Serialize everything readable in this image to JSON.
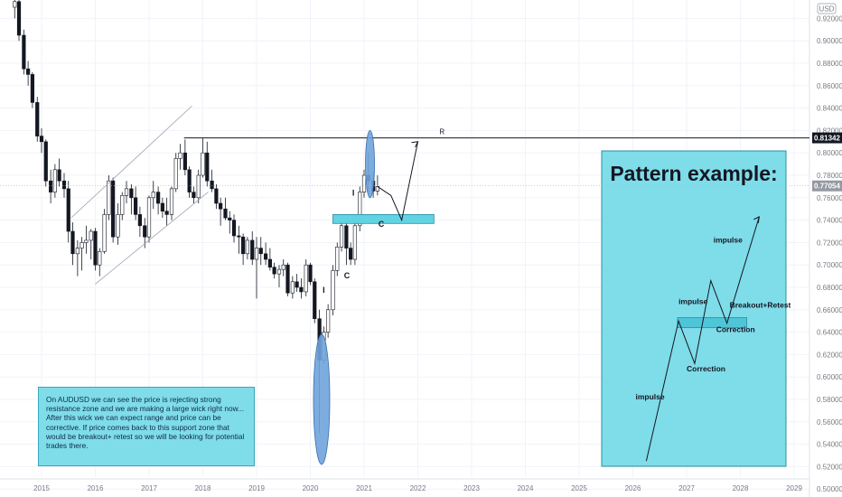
{
  "chart_data": {
    "type": "candlestick",
    "symbol_currency": "USD",
    "x_ticks": [
      "2015",
      "2016",
      "2017",
      "2018",
      "2019",
      "2020",
      "2021",
      "2022",
      "2023",
      "2024",
      "2025",
      "2026",
      "2027",
      "2028",
      "2029"
    ],
    "y_ticks": [
      "0.50000",
      "0.52000",
      "0.54000",
      "0.56000",
      "0.58000",
      "0.60000",
      "0.62000",
      "0.64000",
      "0.66000",
      "0.68000",
      "0.70000",
      "0.72000",
      "0.74000",
      "0.76000",
      "0.78000",
      "0.80000",
      "0.82000",
      "0.84000",
      "0.86000",
      "0.88000",
      "0.90000",
      "0.92000"
    ],
    "ylim": [
      0.495,
      0.93
    ],
    "price_labels": [
      {
        "value": 0.81342,
        "text": "0.81342"
      },
      {
        "value": 0.77054,
        "text": "0.77054"
      }
    ],
    "resistance": {
      "value": 0.8134,
      "label": "R"
    },
    "candles": [
      [
        2014.5,
        0.93,
        0.94,
        0.92,
        0.935
      ],
      [
        2014.58,
        0.935,
        0.938,
        0.9,
        0.905
      ],
      [
        2014.67,
        0.905,
        0.91,
        0.87,
        0.875
      ],
      [
        2014.75,
        0.875,
        0.882,
        0.86,
        0.87
      ],
      [
        2014.83,
        0.87,
        0.872,
        0.84,
        0.845
      ],
      [
        2014.92,
        0.845,
        0.85,
        0.81,
        0.815
      ],
      [
        2015.0,
        0.815,
        0.822,
        0.8,
        0.81
      ],
      [
        2015.08,
        0.81,
        0.812,
        0.77,
        0.775
      ],
      [
        2015.17,
        0.775,
        0.785,
        0.755,
        0.765
      ],
      [
        2015.25,
        0.765,
        0.79,
        0.76,
        0.785
      ],
      [
        2015.33,
        0.785,
        0.795,
        0.77,
        0.775
      ],
      [
        2015.42,
        0.775,
        0.782,
        0.76,
        0.768
      ],
      [
        2015.5,
        0.768,
        0.775,
        0.72,
        0.73
      ],
      [
        2015.58,
        0.73,
        0.738,
        0.7,
        0.71
      ],
      [
        2015.67,
        0.71,
        0.722,
        0.69,
        0.715
      ],
      [
        2015.75,
        0.715,
        0.725,
        0.695,
        0.72
      ],
      [
        2015.83,
        0.72,
        0.735,
        0.71,
        0.722
      ],
      [
        2015.92,
        0.722,
        0.732,
        0.705,
        0.73
      ],
      [
        2016.0,
        0.73,
        0.733,
        0.695,
        0.7
      ],
      [
        2016.08,
        0.7,
        0.715,
        0.69,
        0.712
      ],
      [
        2016.17,
        0.712,
        0.75,
        0.71,
        0.745
      ],
      [
        2016.25,
        0.745,
        0.78,
        0.74,
        0.775
      ],
      [
        2016.33,
        0.775,
        0.778,
        0.72,
        0.725
      ],
      [
        2016.42,
        0.725,
        0.755,
        0.718,
        0.745
      ],
      [
        2016.5,
        0.745,
        0.765,
        0.74,
        0.762
      ],
      [
        2016.58,
        0.762,
        0.775,
        0.755,
        0.768
      ],
      [
        2016.67,
        0.768,
        0.772,
        0.745,
        0.76
      ],
      [
        2016.75,
        0.76,
        0.77,
        0.74,
        0.745
      ],
      [
        2016.83,
        0.745,
        0.752,
        0.725,
        0.735
      ],
      [
        2016.92,
        0.735,
        0.742,
        0.715,
        0.725
      ],
      [
        2017.0,
        0.725,
        0.762,
        0.72,
        0.76
      ],
      [
        2017.08,
        0.76,
        0.775,
        0.75,
        0.765
      ],
      [
        2017.17,
        0.765,
        0.77,
        0.745,
        0.755
      ],
      [
        2017.25,
        0.755,
        0.76,
        0.742,
        0.748
      ],
      [
        2017.33,
        0.748,
        0.76,
        0.735,
        0.745
      ],
      [
        2017.42,
        0.745,
        0.77,
        0.74,
        0.768
      ],
      [
        2017.5,
        0.768,
        0.8,
        0.765,
        0.795
      ],
      [
        2017.58,
        0.795,
        0.808,
        0.785,
        0.8
      ],
      [
        2017.67,
        0.8,
        0.812,
        0.78,
        0.785
      ],
      [
        2017.75,
        0.785,
        0.788,
        0.76,
        0.765
      ],
      [
        2017.83,
        0.765,
        0.77,
        0.755,
        0.76
      ],
      [
        2017.92,
        0.76,
        0.785,
        0.755,
        0.78
      ],
      [
        2018.0,
        0.78,
        0.813,
        0.778,
        0.8
      ],
      [
        2018.08,
        0.8,
        0.81,
        0.77,
        0.775
      ],
      [
        2018.17,
        0.775,
        0.785,
        0.765,
        0.768
      ],
      [
        2018.25,
        0.768,
        0.772,
        0.75,
        0.755
      ],
      [
        2018.33,
        0.755,
        0.76,
        0.735,
        0.75
      ],
      [
        2018.42,
        0.75,
        0.76,
        0.74,
        0.742
      ],
      [
        2018.5,
        0.742,
        0.748,
        0.728,
        0.74
      ],
      [
        2018.58,
        0.74,
        0.745,
        0.72,
        0.726
      ],
      [
        2018.67,
        0.726,
        0.735,
        0.71,
        0.725
      ],
      [
        2018.75,
        0.725,
        0.728,
        0.7,
        0.71
      ],
      [
        2018.83,
        0.71,
        0.725,
        0.705,
        0.722
      ],
      [
        2018.92,
        0.722,
        0.73,
        0.7,
        0.705
      ],
      [
        2019.0,
        0.705,
        0.725,
        0.67,
        0.715
      ],
      [
        2019.08,
        0.715,
        0.725,
        0.7,
        0.71
      ],
      [
        2019.17,
        0.71,
        0.72,
        0.7,
        0.705
      ],
      [
        2019.25,
        0.705,
        0.715,
        0.695,
        0.698
      ],
      [
        2019.33,
        0.698,
        0.702,
        0.688,
        0.692
      ],
      [
        2019.42,
        0.692,
        0.7,
        0.68,
        0.696
      ],
      [
        2019.5,
        0.696,
        0.705,
        0.69,
        0.7
      ],
      [
        2019.58,
        0.7,
        0.702,
        0.672,
        0.675
      ],
      [
        2019.67,
        0.675,
        0.69,
        0.67,
        0.685
      ],
      [
        2019.75,
        0.685,
        0.692,
        0.676,
        0.68
      ],
      [
        2019.83,
        0.68,
        0.688,
        0.67,
        0.676
      ],
      [
        2019.92,
        0.676,
        0.705,
        0.672,
        0.7
      ],
      [
        2020.0,
        0.7,
        0.702,
        0.682,
        0.685
      ],
      [
        2020.08,
        0.685,
        0.688,
        0.648,
        0.652
      ],
      [
        2020.17,
        0.652,
        0.66,
        0.55,
        0.615
      ],
      [
        2020.25,
        0.615,
        0.645,
        0.612,
        0.64
      ],
      [
        2020.33,
        0.64,
        0.665,
        0.635,
        0.66
      ],
      [
        2020.42,
        0.66,
        0.7,
        0.655,
        0.695
      ],
      [
        2020.5,
        0.695,
        0.72,
        0.69,
        0.716
      ],
      [
        2020.58,
        0.716,
        0.74,
        0.712,
        0.735
      ],
      [
        2020.67,
        0.735,
        0.745,
        0.7,
        0.715
      ],
      [
        2020.75,
        0.715,
        0.72,
        0.7,
        0.705
      ],
      [
        2020.83,
        0.705,
        0.74,
        0.7,
        0.735
      ],
      [
        2020.92,
        0.735,
        0.77,
        0.73,
        0.765
      ],
      [
        2021.0,
        0.765,
        0.785,
        0.76,
        0.78
      ],
      [
        2021.08,
        0.78,
        0.8,
        0.765,
        0.775
      ],
      [
        2021.17,
        0.775,
        0.783,
        0.76,
        0.766
      ],
      [
        2021.25,
        0.766,
        0.78,
        0.762,
        0.77
      ]
    ],
    "channel": [
      [
        [
          2015.55,
          0.742
        ],
        [
          2017.8,
          0.842
        ]
      ],
      [
        [
          2016.0,
          0.683
        ],
        [
          2018.1,
          0.765
        ]
      ]
    ],
    "zones": [
      [
        2020.42,
        2022.3,
        0.737,
        0.745
      ],
      [
        2026.83,
        2028.12,
        0.644,
        0.653
      ]
    ],
    "ellipses": [
      [
        2021.11,
        0.79,
        0.03
      ],
      [
        2020.21,
        0.58,
        0.058
      ]
    ],
    "projection": [
      [
        2021.25,
        0.77
      ],
      [
        2021.5,
        0.762
      ],
      [
        2021.7,
        0.74
      ],
      [
        2022.0,
        0.81
      ]
    ],
    "annotations": [
      {
        "text": "I",
        "x": 2020.25,
        "y": 0.675
      },
      {
        "text": "C",
        "x": 2020.68,
        "y": 0.688
      },
      {
        "text": "I",
        "x": 2020.8,
        "y": 0.762
      },
      {
        "text": "C",
        "x": 2021.32,
        "y": 0.734
      }
    ],
    "example": {
      "title": "Pattern example:",
      "path": [
        [
          2026.25,
          0.525
        ],
        [
          2026.85,
          0.65
        ],
        [
          2027.15,
          0.612
        ],
        [
          2027.45,
          0.686
        ],
        [
          2027.75,
          0.648
        ],
        [
          2028.35,
          0.743
        ]
      ],
      "labels": [
        {
          "text": "impulse",
          "x": 2026.05,
          "y": 0.58
        },
        {
          "text": "impulse",
          "x": 2026.85,
          "y": 0.665
        },
        {
          "text": "Correction",
          "x": 2027.0,
          "y": 0.605
        },
        {
          "text": "impulse",
          "x": 2027.5,
          "y": 0.72
        },
        {
          "text": "Breakout+Retest",
          "x": 2027.8,
          "y": 0.662
        },
        {
          "text": "Correction",
          "x": 2027.55,
          "y": 0.64
        }
      ]
    }
  },
  "note_text": "On AUDUSD we can see the price is rejecting strong resistance zone and we are making a large wick right now... After this wick we can expect range and price can be corrective. If price comes back to this support zone that would be breakout+ retest so we will be looking for potential trades there."
}
